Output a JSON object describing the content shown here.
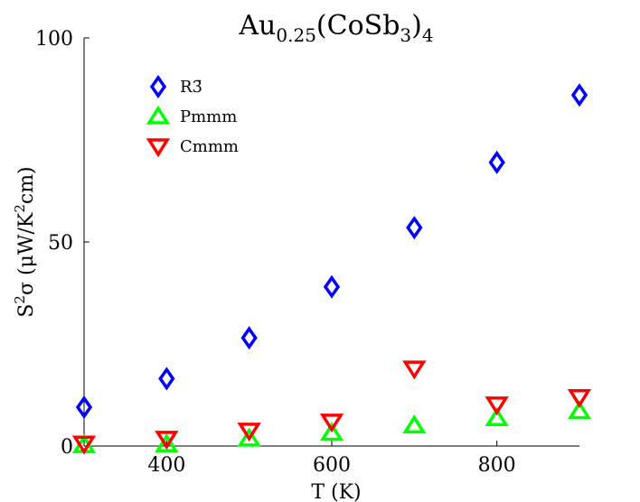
{
  "chart_data": {
    "type": "scatter",
    "title": "Au₀.₂₅(CoSb₃)₄",
    "title_parts": {
      "base": "Au",
      "sub1": "0.25",
      "mid": "(CoSb",
      "sub2": "3",
      "close": ")",
      "sub3": "4"
    },
    "xlabel": "T (K)",
    "ylabel": "S²σ (μW/K²cm)",
    "ylabel_parts": {
      "a": "S",
      "sup1": "2",
      "b": "σ (μW/K",
      "sup2": "2",
      "c": "cm)"
    },
    "xlim": [
      300,
      900
    ],
    "ylim": [
      0,
      100
    ],
    "xticks": [
      "400",
      "600",
      "800"
    ],
    "xtick_values": [
      400,
      600,
      800
    ],
    "yticks": [
      "0",
      "50",
      "100"
    ],
    "ytick_values": [
      0,
      50,
      100
    ],
    "grid": false,
    "legend_position": "top-left",
    "x": [
      300,
      400,
      500,
      600,
      700,
      800,
      900
    ],
    "series": [
      {
        "name": "R3̄",
        "marker": "diamond",
        "color": "#0000ff",
        "values": [
          9.5,
          16.5,
          26.5,
          39,
          53.5,
          69.5,
          86
        ]
      },
      {
        "name": "Pmmm",
        "marker": "triangle-up",
        "color": "#00ff00",
        "values": [
          0.2,
          0.4,
          1.8,
          3.2,
          5,
          6.8,
          8.5
        ]
      },
      {
        "name": "Cmmm",
        "marker": "triangle-down",
        "color": "#ff0000",
        "values": [
          0.6,
          1.8,
          3.8,
          6,
          19,
          10.2,
          12
        ]
      }
    ]
  }
}
